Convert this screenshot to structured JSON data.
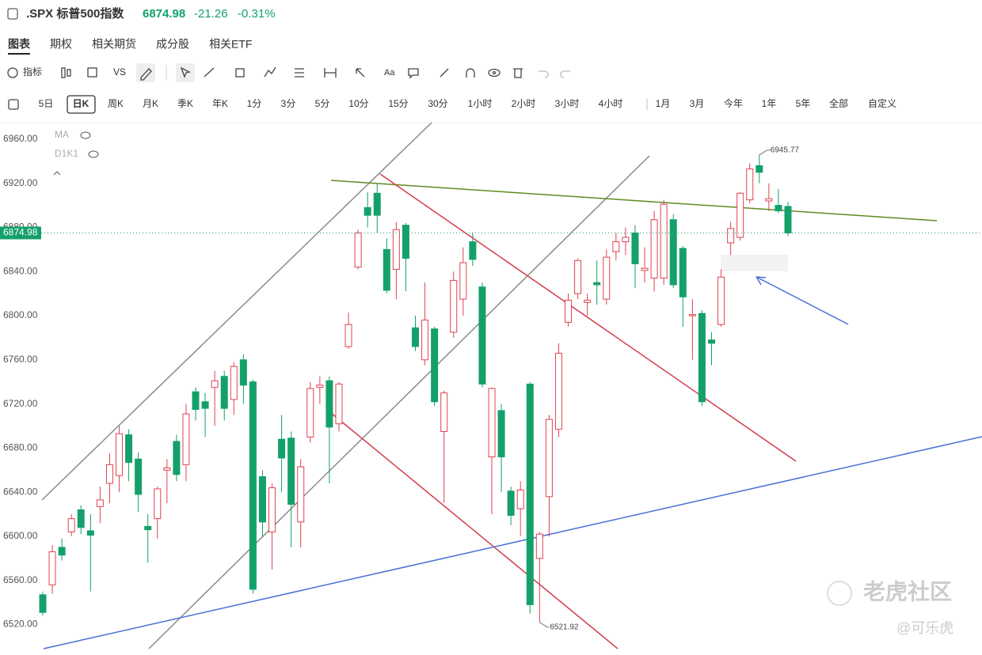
{
  "header": {
    "symbol": ".SPX 标普500指数",
    "price": "6874.98",
    "change": "-21.26",
    "change_pct": "-0.31%"
  },
  "tabs": [
    "图表",
    "期权",
    "相关期货",
    "成分股",
    "相关ETF"
  ],
  "toolbar": {
    "indicator": "指标",
    "vs": "VS",
    "text": "Aa"
  },
  "periods": [
    "5日",
    "日K",
    "周K",
    "月K",
    "季K",
    "年K",
    "1分",
    "3分",
    "5分",
    "10分",
    "15分",
    "30分",
    "1小时",
    "2小时",
    "3小时",
    "4小时",
    "1月",
    "3月",
    "今年",
    "1年",
    "5年",
    "全部",
    "自定义"
  ],
  "overlays": [
    "MA",
    "D1K1"
  ],
  "watermark": {
    "brand": "老虎社区",
    "author": "@可乐虎"
  },
  "chart_data": {
    "type": "candlestick",
    "up_color": "#e0434f",
    "down_color": "#14a06b",
    "grid": false,
    "ylim": [
      6496,
      6975
    ],
    "yticks": [
      {
        "value": 6520,
        "label": "6520.00"
      },
      {
        "value": 6560,
        "label": "6560.00"
      },
      {
        "value": 6600,
        "label": "6600.00"
      },
      {
        "value": 6640,
        "label": "6640.00"
      },
      {
        "value": 6680,
        "label": "6680.00"
      },
      {
        "value": 6720,
        "label": "6720.00"
      },
      {
        "value": 6760,
        "label": "6760.00"
      },
      {
        "value": 6800,
        "label": "6800.00"
      },
      {
        "value": 6840,
        "label": "6840.00"
      },
      {
        "value": 6880,
        "label": "6880.00"
      },
      {
        "value": 6920,
        "label": "6920.00"
      },
      {
        "value": 6960,
        "label": "6960.00"
      }
    ],
    "series": [
      {
        "open": [
          6547,
          6556,
          6590,
          6604,
          6624,
          6605,
          6627,
          6648,
          6655,
          6692,
          6670,
          6609,
          6616,
          6660,
          6686,
          6665,
          6731,
          6722,
          6735,
          6745,
          6724,
          6760,
          6740,
          6654,
          6604,
          6688,
          6689,
          6613,
          6690,
          6735,
          6741,
          6702,
          6772,
          6844,
          6898,
          6911,
          6860,
          6842,
          6882,
          6789,
          6760,
          6788,
          6695,
          6785,
          6815,
          6867,
          6826,
          6672,
          6714,
          6641,
          6625,
          6738,
          6580,
          6636,
          6697,
          6794,
          6820,
          6812,
          6830,
          6815,
          6858,
          6867,
          6875,
          6841,
          6834,
          6834,
          6887,
          6861,
          6800,
          6802,
          6778,
          6792,
          6866,
          6871,
          6905,
          6936,
          6904,
          6900,
          6899
        ],
        "high": [
          6550,
          6592,
          6598,
          6620,
          6628,
          6620,
          6645,
          6675,
          6700,
          6697,
          6676,
          6620,
          6645,
          6670,
          6692,
          6720,
          6735,
          6730,
          6750,
          6750,
          6758,
          6765,
          6742,
          6660,
          6648,
          6710,
          6695,
          6670,
          6740,
          6745,
          6745,
          6740,
          6803,
          6878,
          6912,
          6920,
          6870,
          6885,
          6884,
          6800,
          6830,
          6790,
          6732,
          6840,
          6862,
          6875,
          6830,
          6735,
          6720,
          6645,
          6650,
          6740,
          6604,
          6710,
          6775,
          6820,
          6852,
          6820,
          6850,
          6860,
          6875,
          6880,
          6882,
          6862,
          6895,
          6905,
          6892,
          6863,
          6815,
          6805,
          6785,
          6842,
          6885,
          6912,
          6938,
          6945.77,
          6920,
          6915,
          6903
        ],
        "low": [
          6528,
          6548,
          6578,
          6600,
          6602,
          6550,
          6612,
          6630,
          6640,
          6650,
          6622,
          6576,
          6598,
          6630,
          6650,
          6650,
          6705,
          6690,
          6700,
          6705,
          6710,
          6720,
          6548,
          6600,
          6570,
          6640,
          6590,
          6590,
          6685,
          6720,
          6648,
          6695,
          6770,
          6842,
          6880,
          6875,
          6820,
          6815,
          6822,
          6768,
          6755,
          6718,
          6630,
          6780,
          6800,
          6845,
          6735,
          6620,
          6640,
          6610,
          6600,
          6530,
          6521.92,
          6600,
          6690,
          6790,
          6815,
          6800,
          6810,
          6810,
          6850,
          6855,
          6825,
          6830,
          6822,
          6828,
          6825,
          6790,
          6760,
          6718,
          6755,
          6790,
          6855,
          6868,
          6902,
          6920,
          6895,
          6893,
          6872
        ],
        "close": [
          6531,
          6586,
          6583,
          6616,
          6608,
          6601,
          6633,
          6665,
          6693,
          6667,
          6638,
          6606,
          6643,
          6662,
          6656,
          6711,
          6715,
          6716,
          6741,
          6716,
          6754,
          6737,
          6552,
          6613,
          6644,
          6671,
          6629,
          6663,
          6734,
          6737,
          6699,
          6738,
          6792,
          6875,
          6891,
          6891,
          6823,
          6878,
          6852,
          6772,
          6796,
          6722,
          6730,
          6832,
          6848,
          6851,
          6738,
          6734,
          6672,
          6619,
          6642,
          6538,
          6602,
          6706,
          6766,
          6814,
          6850,
          6814,
          6828,
          6853,
          6867,
          6871,
          6847,
          6843,
          6887,
          6901,
          6828,
          6817,
          6801,
          6722,
          6775,
          6835,
          6879,
          6911,
          6933,
          6930,
          6906,
          6895,
          6874.98
        ]
      }
    ]
  }
}
